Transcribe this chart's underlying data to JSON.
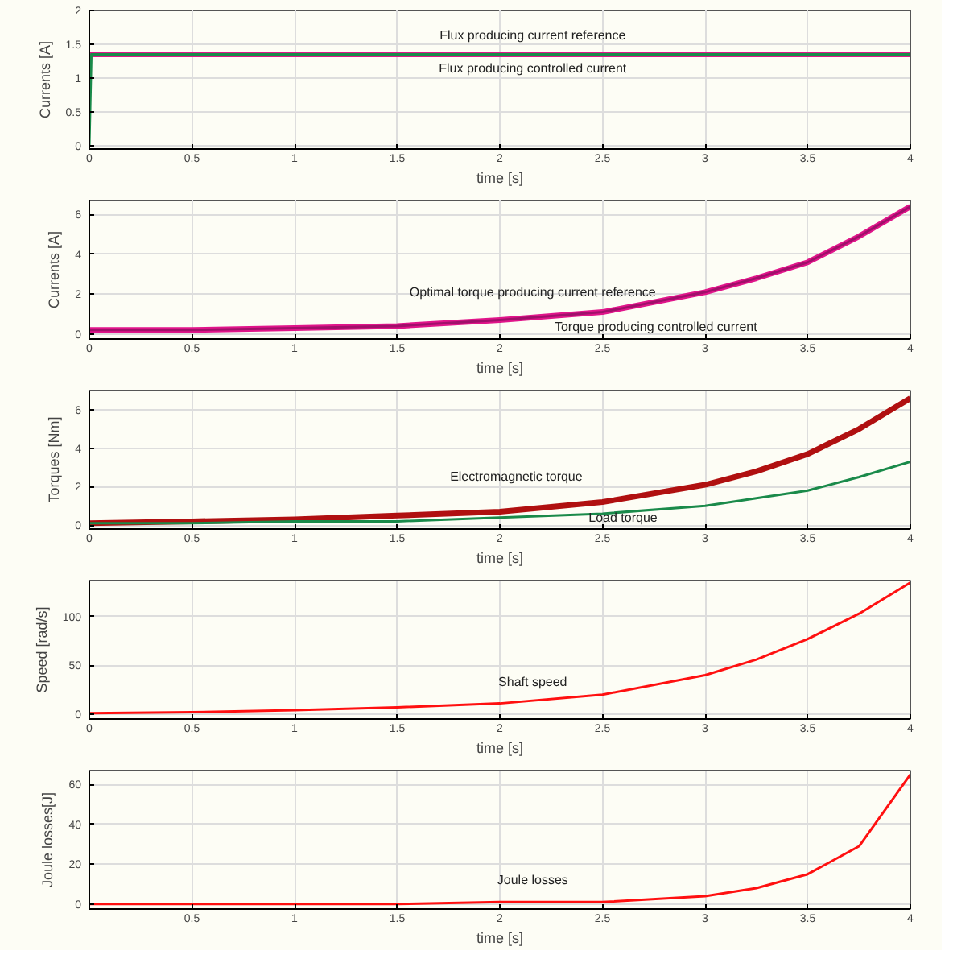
{
  "chart_data": [
    {
      "type": "line",
      "xlabel": "time [s]",
      "ylabel": "Currents [A]",
      "xlim": [
        0,
        4
      ],
      "ylim": [
        -0.05,
        2
      ],
      "xticks": [
        0,
        0.5,
        1,
        1.5,
        2,
        2.5,
        3,
        3.5,
        4
      ],
      "yticks": [
        0,
        0.5,
        1,
        1.5,
        2
      ],
      "grid": true,
      "series": [
        {
          "name": "Flux producing current reference",
          "color": "#e0158a",
          "x": [
            0,
            4
          ],
          "values": [
            1.35,
            1.35
          ]
        },
        {
          "name": "Flux producing controlled current",
          "color": "#1a8a4a",
          "x": [
            0,
            0.01,
            4
          ],
          "values": [
            0,
            1.35,
            1.35
          ]
        }
      ]
    },
    {
      "type": "line",
      "xlabel": "time [s]",
      "ylabel": "Currents [A]",
      "xlim": [
        0,
        4
      ],
      "ylim": [
        -0.25,
        6.7
      ],
      "xticks": [
        0,
        0.5,
        1,
        1.5,
        2,
        2.5,
        3,
        3.5,
        4
      ],
      "yticks": [
        0,
        2,
        4,
        6
      ],
      "grid": true,
      "series": [
        {
          "name": "Optimal torque producing current reference",
          "color": "#e0158a",
          "x": [
            0,
            0.5,
            1,
            1.5,
            2,
            2.5,
            3,
            3.25,
            3.5,
            3.75,
            4
          ],
          "values": [
            0.2,
            0.2,
            0.3,
            0.4,
            0.7,
            1.1,
            2.1,
            2.8,
            3.6,
            4.9,
            6.4
          ]
        },
        {
          "name": "Torque producing controlled current",
          "color": "#a0106a",
          "x": [
            0,
            0.5,
            1,
            1.5,
            2,
            2.5,
            3,
            3.25,
            3.5,
            3.75,
            4
          ],
          "values": [
            0.2,
            0.2,
            0.3,
            0.4,
            0.7,
            1.1,
            2.1,
            2.8,
            3.6,
            4.9,
            6.4
          ]
        }
      ]
    },
    {
      "type": "line",
      "xlabel": "time [s]",
      "ylabel": "Torques [Nm]",
      "xlim": [
        0,
        4
      ],
      "ylim": [
        -0.2,
        7
      ],
      "xticks": [
        0,
        0.5,
        1,
        1.5,
        2,
        2.5,
        3,
        3.5,
        4
      ],
      "yticks": [
        0,
        2,
        4,
        6
      ],
      "grid": true,
      "series": [
        {
          "name": "Electromagnetic torque",
          "color": "#b01010",
          "x": [
            0,
            0.5,
            1,
            1.5,
            2,
            2.5,
            3,
            3.25,
            3.5,
            3.75,
            4
          ],
          "values": [
            0.1,
            0.2,
            0.3,
            0.5,
            0.7,
            1.2,
            2.1,
            2.8,
            3.7,
            5.0,
            6.6
          ]
        },
        {
          "name": "Load torque",
          "color": "#1a8a4a",
          "x": [
            0,
            0.5,
            1,
            1.5,
            2,
            2.5,
            3,
            3.25,
            3.5,
            3.75,
            4
          ],
          "values": [
            0.1,
            0.1,
            0.2,
            0.2,
            0.4,
            0.6,
            1.0,
            1.4,
            1.8,
            2.5,
            3.3
          ]
        }
      ]
    },
    {
      "type": "line",
      "xlabel": "time [s]",
      "ylabel": "Speed [rad/s]",
      "xlim": [
        0,
        4
      ],
      "ylim": [
        -5,
        137
      ],
      "xticks": [
        0,
        0.5,
        1,
        1.5,
        2,
        2.5,
        3,
        3.5,
        4
      ],
      "yticks": [
        0,
        50,
        100
      ],
      "grid": true,
      "series": [
        {
          "name": "Shaft speed",
          "color": "#ff1010",
          "x": [
            0,
            0.5,
            1,
            1.5,
            2,
            2.5,
            3,
            3.25,
            3.5,
            3.75,
            4
          ],
          "values": [
            1,
            2,
            4,
            7,
            11,
            20,
            40,
            56,
            77,
            103,
            135
          ]
        }
      ]
    },
    {
      "type": "line",
      "xlabel": "time [s]",
      "ylabel": "Joule losses[J]",
      "xlim": [
        0,
        4
      ],
      "ylim": [
        -2.5,
        67
      ],
      "xticks": [
        0.5,
        1,
        1.5,
        2,
        2.5,
        3,
        3.5,
        4
      ],
      "yticks": [
        0,
        20,
        40,
        60
      ],
      "grid": true,
      "series": [
        {
          "name": "Joule losses",
          "color": "#ff1010",
          "x": [
            0,
            0.5,
            1,
            1.5,
            2,
            2.5,
            3,
            3.25,
            3.5,
            3.75,
            4
          ],
          "values": [
            0,
            0,
            0,
            0,
            1,
            1,
            4,
            8,
            15,
            29,
            65
          ]
        }
      ]
    }
  ]
}
